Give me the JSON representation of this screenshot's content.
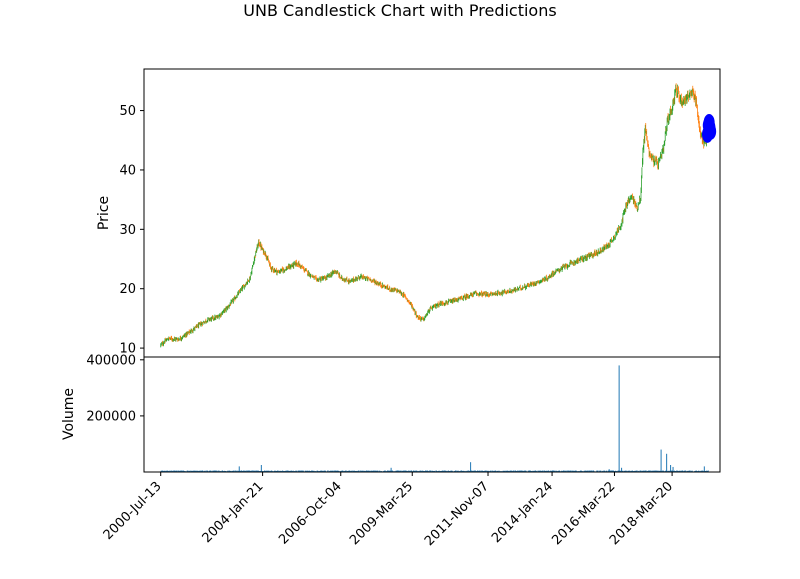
{
  "chart_data": {
    "type": "candlestick",
    "title": "UNB Candlestick Chart with Predictions",
    "price_panel": {
      "ylabel": "Price",
      "ylim": [
        8.5,
        57
      ],
      "yticks": [
        10,
        20,
        30,
        40,
        50
      ],
      "colors": {
        "up": "#2ca02c",
        "down": "#ff7f0e",
        "prediction": "#0000ff"
      },
      "close_series": [
        [
          "2000-07-13",
          10.5
        ],
        [
          "2000-10-15",
          11.6
        ],
        [
          "2001-03-01",
          11.5
        ],
        [
          "2001-07-01",
          12.6
        ],
        [
          "2001-11-01",
          13.8
        ],
        [
          "2002-03-01",
          14.8
        ],
        [
          "2002-07-01",
          15.2
        ],
        [
          "2002-11-01",
          16.8
        ],
        [
          "2003-03-01",
          18.8
        ],
        [
          "2003-06-01",
          20.5
        ],
        [
          "2003-08-15",
          21.8
        ],
        [
          "2003-10-15",
          25.5
        ],
        [
          "2003-12-01",
          27.8
        ],
        [
          "2004-01-21",
          26.5
        ],
        [
          "2004-03-01",
          25.8
        ],
        [
          "2004-05-01",
          23.5
        ],
        [
          "2004-08-01",
          22.8
        ],
        [
          "2004-12-01",
          23.5
        ],
        [
          "2005-04-01",
          24.3
        ],
        [
          "2005-08-01",
          22.8
        ],
        [
          "2005-12-01",
          21.5
        ],
        [
          "2006-04-01",
          21.8
        ],
        [
          "2006-08-01",
          23.0
        ],
        [
          "2006-10-04",
          21.8
        ],
        [
          "2007-02-01",
          21.2
        ],
        [
          "2007-06-01",
          22.0
        ],
        [
          "2007-10-01",
          21.6
        ],
        [
          "2008-02-01",
          20.8
        ],
        [
          "2008-06-01",
          20.0
        ],
        [
          "2008-10-01",
          19.6
        ],
        [
          "2009-01-01",
          18.6
        ],
        [
          "2009-03-25",
          17.0
        ],
        [
          "2009-06-01",
          15.2
        ],
        [
          "2009-08-15",
          14.8
        ],
        [
          "2009-11-01",
          16.5
        ],
        [
          "2010-03-01",
          17.5
        ],
        [
          "2010-08-01",
          17.8
        ],
        [
          "2011-01-01",
          18.5
        ],
        [
          "2011-06-01",
          19.2
        ],
        [
          "2011-11-07",
          19.0
        ],
        [
          "2012-04-01",
          19.3
        ],
        [
          "2012-09-01",
          19.6
        ],
        [
          "2013-02-01",
          20.3
        ],
        [
          "2013-07-01",
          21.0
        ],
        [
          "2013-12-01",
          21.8
        ],
        [
          "2014-01-24",
          22.5
        ],
        [
          "2014-06-01",
          23.5
        ],
        [
          "2014-11-01",
          24.5
        ],
        [
          "2015-04-01",
          25.3
        ],
        [
          "2015-09-01",
          26.2
        ],
        [
          "2016-01-01",
          27.3
        ],
        [
          "2016-03-22",
          28.8
        ],
        [
          "2016-06-01",
          30.5
        ],
        [
          "2016-09-01",
          34.5
        ],
        [
          "2016-11-01",
          35.5
        ],
        [
          "2017-01-01",
          33.5
        ],
        [
          "2017-02-15",
          35.5
        ],
        [
          "2017-03-15",
          43.0
        ],
        [
          "2017-04-15",
          47.0
        ],
        [
          "2017-06-01",
          43.0
        ],
        [
          "2017-08-01",
          41.5
        ],
        [
          "2017-10-01",
          41.0
        ],
        [
          "2017-12-01",
          43.5
        ],
        [
          "2018-01-15",
          48.0
        ],
        [
          "2018-03-20",
          50.5
        ],
        [
          "2018-05-01",
          53.5
        ],
        [
          "2018-06-15",
          52.5
        ],
        [
          "2018-08-01",
          51.5
        ],
        [
          "2018-10-01",
          52.5
        ],
        [
          "2018-12-01",
          52.8
        ],
        [
          "2019-01-15",
          52.0
        ],
        [
          "2019-03-01",
          47.0
        ],
        [
          "2019-04-15",
          44.5
        ],
        [
          "2019-06-01",
          45.5
        ]
      ],
      "predictions": [
        [
          "2019-06-10",
          46.0
        ],
        [
          "2019-06-20",
          47.5
        ],
        [
          "2019-07-01",
          48.0
        ],
        [
          "2019-07-10",
          47.2
        ],
        [
          "2019-07-20",
          46.5
        ]
      ]
    },
    "volume_panel": {
      "ylabel": "Volume",
      "ylim": [
        0,
        410000
      ],
      "yticks": [
        200000,
        400000
      ],
      "ytick_labels": [
        "200000",
        "400000"
      ],
      "color": "#1f77b4",
      "baseline": 3000,
      "spikes": [
        [
          "2003-04-01",
          20000
        ],
        [
          "2004-01-05",
          25000
        ],
        [
          "2008-07-01",
          15000
        ],
        [
          "2011-04-01",
          35000
        ],
        [
          "2016-01-15",
          10000
        ],
        [
          "2016-05-20",
          380000
        ],
        [
          "2016-06-20",
          15000
        ],
        [
          "2017-11-01",
          80000
        ],
        [
          "2018-01-10",
          65000
        ],
        [
          "2018-03-01",
          25000
        ],
        [
          "2018-04-01",
          18000
        ],
        [
          "2019-05-01",
          20000
        ]
      ]
    },
    "xticks": [
      "2000-Jul-13",
      "2004-Jan-21",
      "2006-Oct-04",
      "2009-Mar-25",
      "2011-Nov-07",
      "2014-Jan-24",
      "2016-Mar-22",
      "2018-Mar-20"
    ],
    "xtick_dates": [
      "2000-07-13",
      "2004-01-21",
      "2006-10-04",
      "2009-03-25",
      "2011-11-07",
      "2014-01-24",
      "2016-03-22",
      "2018-03-20"
    ],
    "xlim": [
      "1999-12-15",
      "2019-11-15"
    ]
  }
}
